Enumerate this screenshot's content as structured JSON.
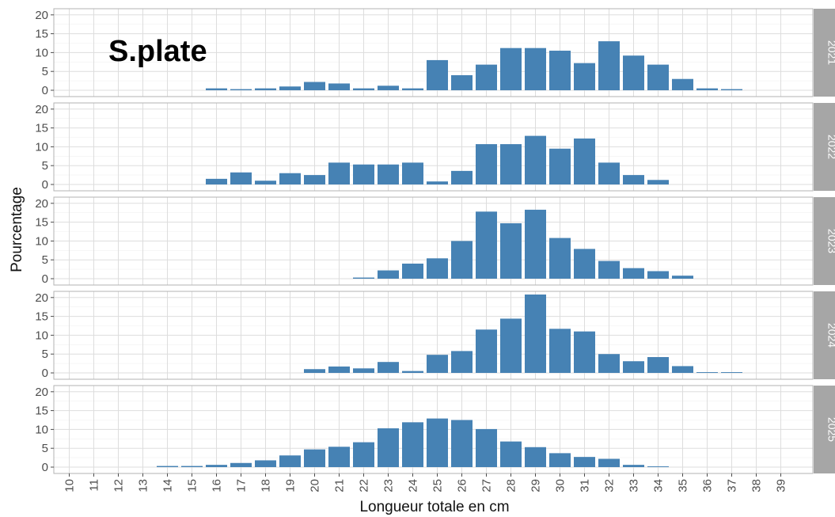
{
  "chart_data": {
    "type": "bar",
    "annotation": "S.plate",
    "xlabel": "Longueur totale en cm",
    "ylabel": "Pourcentage",
    "categories": [
      10,
      11,
      12,
      13,
      14,
      15,
      16,
      17,
      18,
      19,
      20,
      21,
      22,
      23,
      24,
      25,
      26,
      27,
      28,
      29,
      30,
      31,
      32,
      33,
      34,
      35,
      36,
      37,
      38,
      39
    ],
    "category_labels": [
      "10",
      "11",
      "12",
      "13",
      "14",
      "15",
      "16",
      "17",
      "18",
      "19",
      "20",
      "21",
      "22",
      "23",
      "24",
      "25",
      "26",
      "27",
      "28",
      "29",
      "30",
      "31",
      "32",
      "33",
      "34",
      "35",
      "36",
      "37",
      "38",
      "39"
    ],
    "ylim": [
      0,
      21
    ],
    "yticks": [
      0,
      5,
      10,
      15,
      20
    ],
    "ytick_labels": [
      "0",
      "5",
      "10",
      "15",
      "20"
    ],
    "grid": true,
    "bar_color": "#4682b4",
    "panels": [
      {
        "name": "2021",
        "values": [
          0,
          0,
          0,
          0,
          0,
          0,
          0.5,
          0.3,
          0.5,
          1,
          2.2,
          1.8,
          0.5,
          1.2,
          0.5,
          8,
          4,
          6.8,
          11.2,
          11.2,
          10.5,
          7.2,
          13,
          9.2,
          6.8,
          3,
          0.5,
          0.3,
          0,
          0
        ]
      },
      {
        "name": "2022",
        "values": [
          0,
          0,
          0,
          0,
          0,
          0,
          1.5,
          3.2,
          1,
          3,
          2.5,
          5.8,
          5.3,
          5.3,
          5.8,
          0.8,
          3.6,
          10.7,
          10.7,
          12.9,
          9.5,
          12.2,
          5.8,
          2.5,
          1.2,
          0,
          0,
          0,
          0,
          0
        ]
      },
      {
        "name": "2023",
        "values": [
          0,
          0,
          0,
          0,
          0,
          0,
          0,
          0,
          0,
          0,
          0,
          0,
          0.3,
          2.2,
          4,
          5.4,
          10,
          17.8,
          14.7,
          18.3,
          10.8,
          7.9,
          4.7,
          2.8,
          2,
          0.8,
          0,
          0,
          0,
          0
        ]
      },
      {
        "name": "2024",
        "values": [
          0,
          0,
          0,
          0,
          0,
          0,
          0,
          0,
          0,
          0,
          1,
          1.7,
          1.2,
          2.9,
          0.5,
          4.8,
          5.8,
          11.5,
          14.4,
          20.8,
          11.7,
          11,
          5,
          3.1,
          4.2,
          1.8,
          0.2,
          0.2,
          0,
          0
        ]
      },
      {
        "name": "2025",
        "values": [
          0,
          0,
          0,
          0,
          0.3,
          0.3,
          0.6,
          1.1,
          1.8,
          3.1,
          4.7,
          5.4,
          6.6,
          10.3,
          11.9,
          12.9,
          12.5,
          10.1,
          6.8,
          5.3,
          3.7,
          2.7,
          2.2,
          0.6,
          0.2,
          0,
          0,
          0,
          0,
          0
        ]
      }
    ]
  }
}
